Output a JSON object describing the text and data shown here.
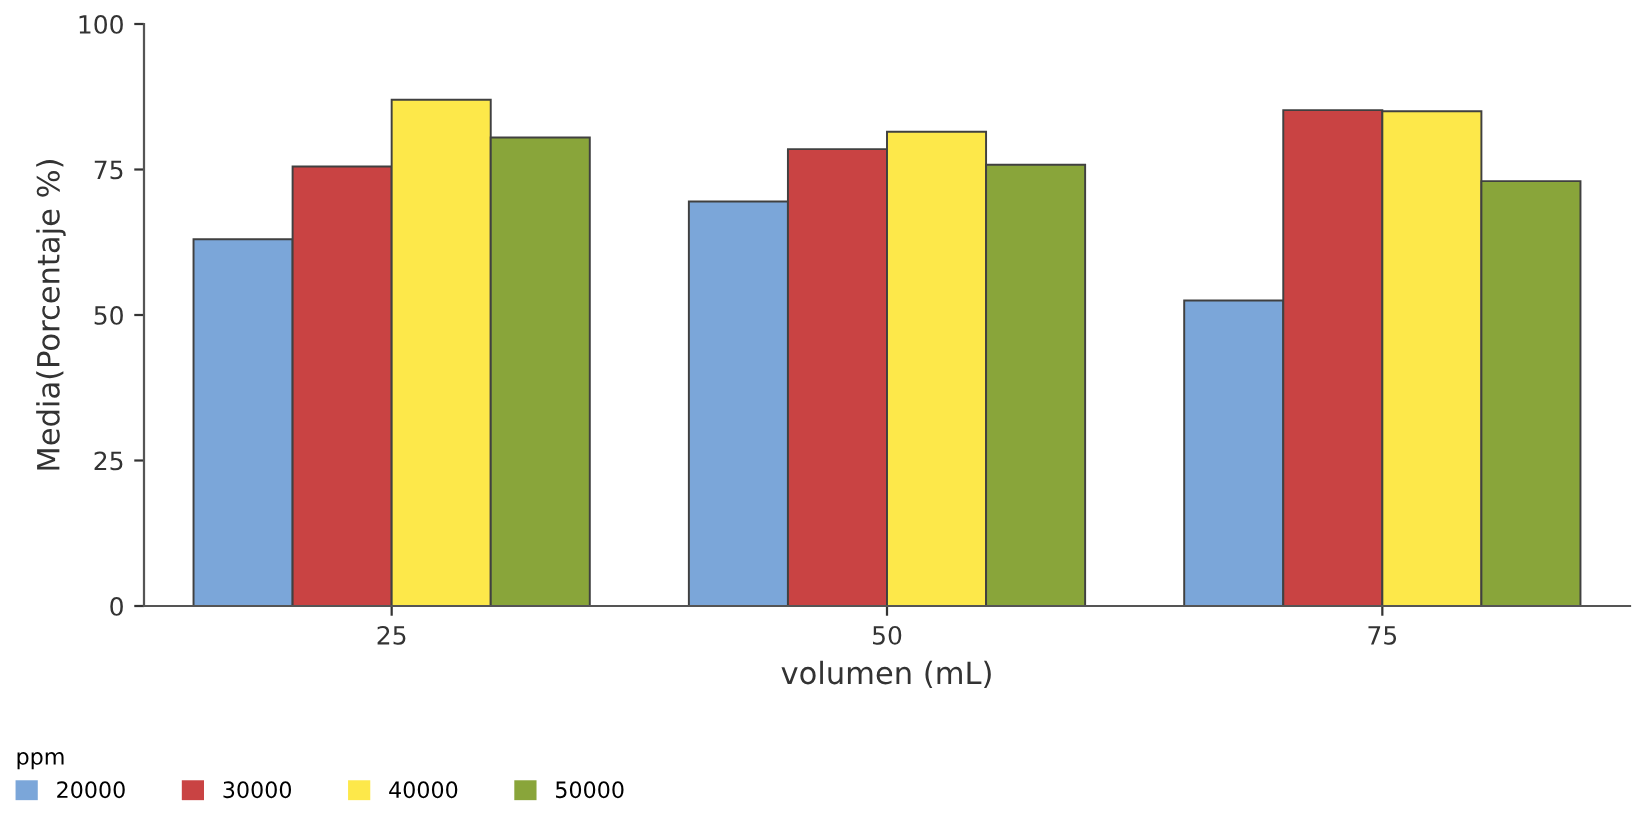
{
  "chart_data": {
    "type": "bar",
    "xlabel": "volumen (mL)",
    "ylabel": "Media(Porcentaje %)",
    "legend_title": "ppm",
    "categories": [
      "25",
      "50",
      "75"
    ],
    "series": [
      {
        "name": "20000",
        "color": "#7ba6d9",
        "values": [
          63,
          69.5,
          52.5
        ]
      },
      {
        "name": "30000",
        "color": "#c94343",
        "values": [
          75.5,
          78.5,
          85.2
        ]
      },
      {
        "name": "40000",
        "color": "#fde84a",
        "values": [
          87,
          81.5,
          85
        ]
      },
      {
        "name": "50000",
        "color": "#89a53a",
        "values": [
          80.5,
          75.8,
          73
        ]
      }
    ],
    "ylim": [
      0,
      100
    ],
    "yticks": [
      0,
      25,
      50,
      75,
      100
    ],
    "grid": false,
    "legend": "bottom left"
  }
}
